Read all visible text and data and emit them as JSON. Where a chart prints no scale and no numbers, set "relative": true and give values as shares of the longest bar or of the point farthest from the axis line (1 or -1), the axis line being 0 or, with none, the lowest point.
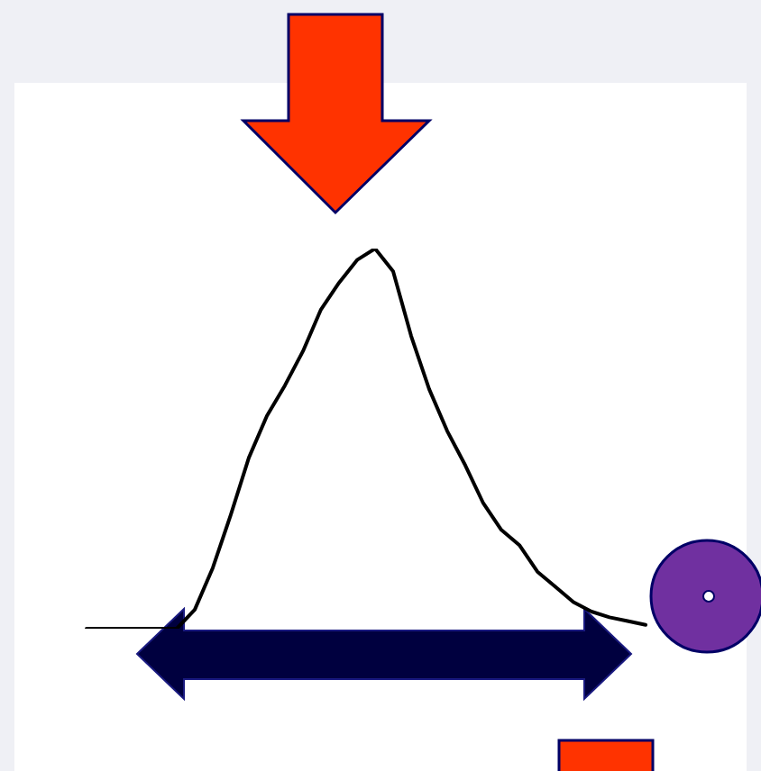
{
  "chart_data": {
    "type": "line",
    "relative": true,
    "marker": "none",
    "categories": [
      null,
      null,
      null,
      null,
      null,
      null,
      null,
      null,
      null,
      null,
      null,
      null,
      null,
      null,
      null,
      null,
      null,
      null,
      null,
      null,
      null,
      null,
      null,
      null,
      null,
      null,
      null,
      null,
      null,
      null,
      null,
      null
    ],
    "series": [
      {
        "color": "#000000",
        "values": [
          0,
          0,
          0,
          0,
          0,
          0,
          0.05,
          0.16,
          0.3,
          0.45,
          0.56,
          0.64,
          0.73,
          0.84,
          0.91,
          0.97,
          1,
          0.94,
          0.77,
          0.63,
          0.52,
          0.43,
          0.33,
          0.26,
          0.22,
          0.15,
          0.11,
          0.07,
          0.045,
          0.03,
          0.02,
          0.01
        ]
      }
    ]
  }
}
